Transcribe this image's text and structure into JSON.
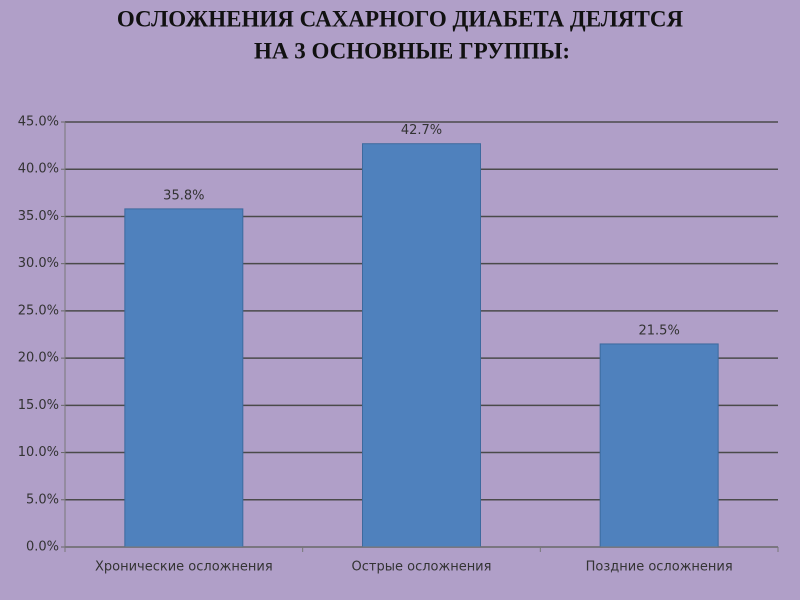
{
  "chart_data": {
    "type": "bar",
    "title": [
      "ОСЛОЖНЕНИЯ САХАРНОГО ДИАБЕТА ДЕЛЯТСЯ",
      "НА 3 ОСНОВНЫЕ ГРУППЫ:"
    ],
    "categories": [
      "Хронические осложнения",
      "Острые осложнения",
      "Поздние осложнения"
    ],
    "values": [
      35.8,
      42.7,
      21.5
    ],
    "value_labels": [
      "35.8%",
      "42.7%",
      "21.5%"
    ],
    "color": "#4f81bd",
    "ylim": [
      0,
      45
    ],
    "yticks": [
      {
        "value": 0,
        "label": "0.0%"
      },
      {
        "value": 5,
        "label": "5.0%"
      },
      {
        "value": 10,
        "label": "10.0%"
      },
      {
        "value": 15,
        "label": "15.0%"
      },
      {
        "value": 20,
        "label": "20.0%"
      },
      {
        "value": 25,
        "label": "25.0%"
      },
      {
        "value": 30,
        "label": "30.0%"
      },
      {
        "value": 35,
        "label": "35.0%"
      },
      {
        "value": 40,
        "label": "40.0%"
      },
      {
        "value": 45,
        "label": "45.0%"
      }
    ],
    "grid": true
  }
}
